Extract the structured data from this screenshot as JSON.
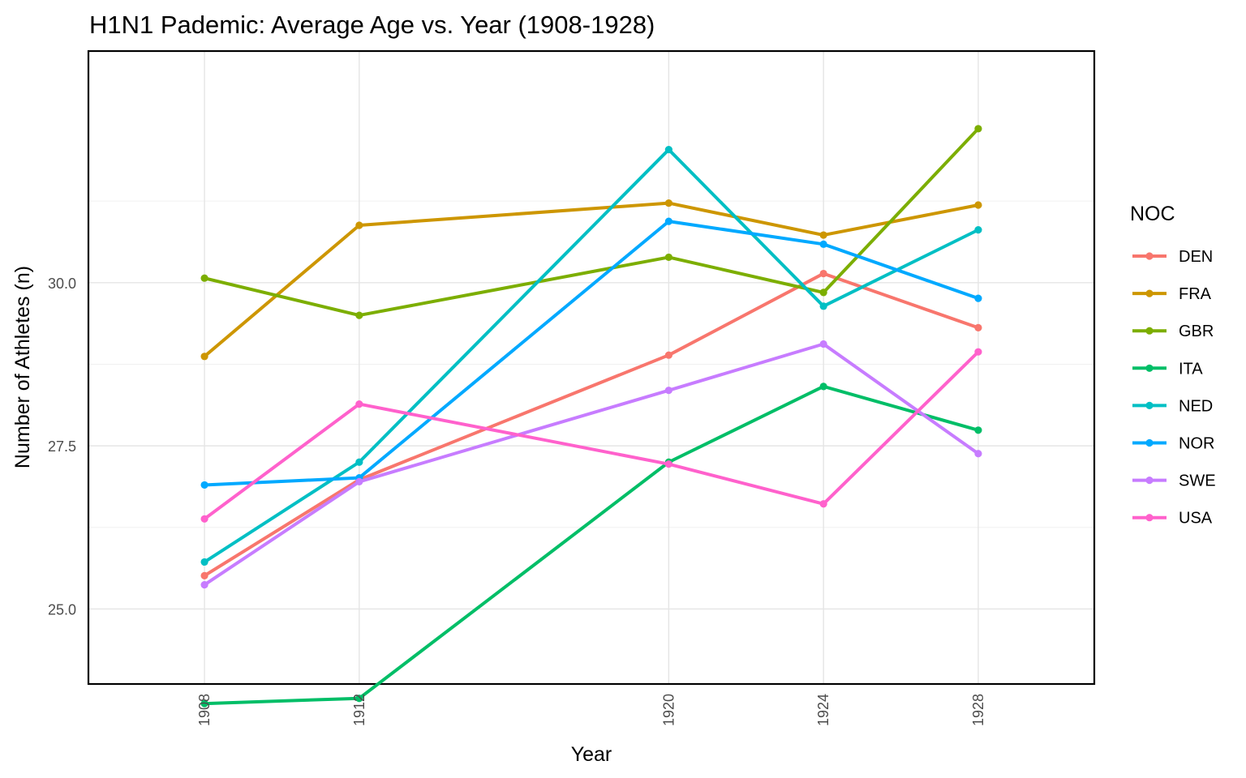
{
  "chart_data": {
    "type": "line",
    "title": "H1N1 Pademic: Average Age vs. Year (1908-1928)",
    "xlabel": "Year",
    "ylabel": "Number of Athletes (n)",
    "x": [
      1908,
      1912,
      1920,
      1924,
      1928
    ],
    "x_tick_labels": [
      "1908",
      "1912",
      "1920",
      "1924",
      "1928"
    ],
    "xlim": [
      1905,
      1931
    ],
    "y_ticks": [
      25.0,
      27.5,
      30.0
    ],
    "y_tick_labels": [
      "25.0",
      "27.5",
      "30.0"
    ],
    "ylim": [
      23.85,
      33.55
    ],
    "grid": true,
    "legend": {
      "title": "NOC",
      "position": "right"
    },
    "series": [
      {
        "name": "DEN",
        "color": "#F8766D",
        "values": [
          25.51,
          26.98,
          28.89,
          30.14,
          29.31
        ]
      },
      {
        "name": "FRA",
        "color": "#CD9600",
        "values": [
          28.87,
          30.88,
          31.22,
          30.73,
          31.19
        ]
      },
      {
        "name": "GBR",
        "color": "#7CAE00",
        "values": [
          30.07,
          29.5,
          30.39,
          29.85,
          32.36
        ]
      },
      {
        "name": "ITA",
        "color": "#00BE67",
        "values": [
          23.55,
          23.63,
          27.25,
          28.41,
          27.74
        ]
      },
      {
        "name": "NED",
        "color": "#00BFC4",
        "values": [
          25.72,
          27.25,
          32.04,
          29.64,
          30.81
        ]
      },
      {
        "name": "NOR",
        "color": "#00A9FF",
        "values": [
          26.9,
          27.01,
          30.94,
          30.59,
          29.76
        ]
      },
      {
        "name": "SWE",
        "color": "#C77CFF",
        "values": [
          25.37,
          26.95,
          28.35,
          29.06,
          27.38
        ]
      },
      {
        "name": "USA",
        "color": "#FF61CC",
        "values": [
          26.38,
          28.14,
          27.22,
          26.61,
          28.94
        ]
      }
    ]
  }
}
